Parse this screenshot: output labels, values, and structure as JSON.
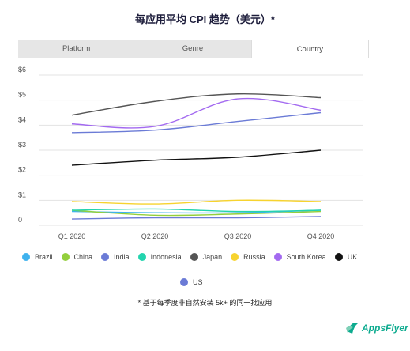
{
  "title": "每应用平均 CPI 趋势（美元）*",
  "tabs": [
    {
      "label": "Platform",
      "active": false
    },
    {
      "label": "Genre",
      "active": false
    },
    {
      "label": "Country",
      "active": true
    }
  ],
  "footnote": "* 基于每季度非自然安装 5k+ 的同一批应用",
  "logo_text": "AppsFlyer",
  "chart_data": {
    "type": "line",
    "categories": [
      "Q1 2020",
      "Q2 2020",
      "Q3 2020",
      "Q4 2020"
    ],
    "y_ticks": [
      "0",
      "$1",
      "$2",
      "$3",
      "$4",
      "$5",
      "$6"
    ],
    "ylim": [
      0,
      6
    ],
    "grid": true,
    "legend_position": "bottom",
    "series": [
      {
        "name": "Brazil",
        "color": "#3fb2ee",
        "values": [
          0.55,
          0.5,
          0.5,
          0.6
        ]
      },
      {
        "name": "China",
        "color": "#93cf3c",
        "values": [
          0.6,
          0.4,
          0.45,
          0.55
        ]
      },
      {
        "name": "India",
        "color": "#6b7bd6",
        "values": [
          0.25,
          0.3,
          0.3,
          0.35
        ]
      },
      {
        "name": "Indonesia",
        "color": "#23d4ae",
        "values": [
          0.6,
          0.65,
          0.55,
          0.6
        ]
      },
      {
        "name": "Japan",
        "color": "#555555",
        "values": [
          4.4,
          4.95,
          5.25,
          5.1
        ]
      },
      {
        "name": "Russia",
        "color": "#f7d32f",
        "values": [
          0.95,
          0.85,
          1.0,
          0.95
        ]
      },
      {
        "name": "South Korea",
        "color": "#a36af0",
        "values": [
          4.05,
          3.95,
          5.05,
          4.6
        ]
      },
      {
        "name": "UK",
        "color": "#111111",
        "values": [
          2.4,
          2.6,
          2.72,
          3.0
        ]
      },
      {
        "name": "US",
        "color": "#6b7bd6",
        "values": [
          3.7,
          3.8,
          4.15,
          4.5
        ]
      }
    ]
  }
}
